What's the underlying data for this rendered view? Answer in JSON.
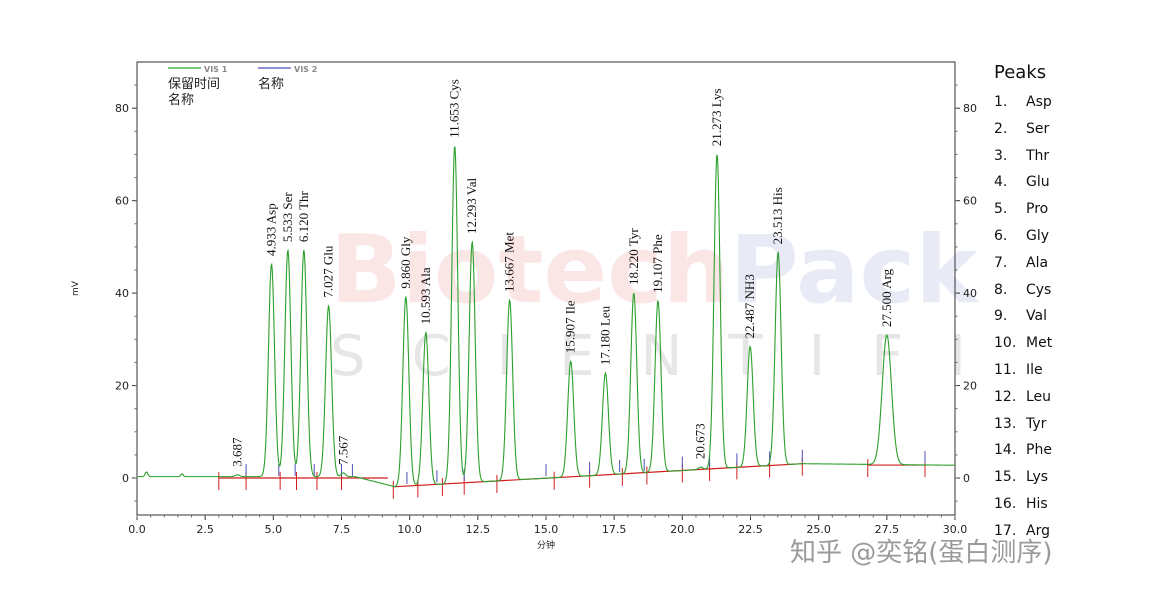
{
  "chart_data": {
    "type": "line",
    "xlabel": "分钟",
    "ylabel": "mV",
    "xlim": [
      0,
      30
    ],
    "ylim": [
      -8,
      90
    ],
    "x_ticks": [
      "0.0",
      "2.5",
      "5.0",
      "7.5",
      "10.0",
      "12.5",
      "15.0",
      "17.5",
      "20.0",
      "22.5",
      "25.0",
      "27.5",
      "30.0"
    ],
    "y_ticks": [
      0,
      20,
      40,
      60,
      80
    ],
    "grid": false,
    "legend": {
      "placement": "top-left",
      "series": [
        {
          "tag": "VIS 1",
          "color": "#2ca02c",
          "line1": "保留时间",
          "line2": "名称"
        },
        {
          "tag": "VIS 2",
          "color": "#4f4fb8",
          "line1": "名称"
        }
      ]
    },
    "series": [
      {
        "name": "VIS 1",
        "color": "#2ca02c"
      }
    ],
    "peaks": [
      {
        "rt": 3.687,
        "height": 0.4,
        "label": "3.687",
        "name": ""
      },
      {
        "rt": 4.933,
        "height": 46,
        "label": "4.933",
        "name": "Asp"
      },
      {
        "rt": 5.533,
        "height": 49,
        "label": "5.533",
        "name": "Ser"
      },
      {
        "rt": 6.12,
        "height": 49,
        "label": "6.120",
        "name": "Thr"
      },
      {
        "rt": 7.027,
        "height": 37,
        "label": "7.027",
        "name": "Glu"
      },
      {
        "rt": 7.567,
        "height": 0.8,
        "label": "7.567",
        "name": ""
      },
      {
        "rt": 9.86,
        "height": 41,
        "label": "9.860",
        "name": "Gly"
      },
      {
        "rt": 10.593,
        "height": 33,
        "label": "10.593",
        "name": "Ala"
      },
      {
        "rt": 11.653,
        "height": 73,
        "label": "11.653",
        "name": "Cys"
      },
      {
        "rt": 12.293,
        "height": 52,
        "label": "12.293",
        "name": "Val"
      },
      {
        "rt": 13.667,
        "height": 39,
        "label": "13.667",
        "name": "Met"
      },
      {
        "rt": 15.907,
        "height": 25,
        "label": "15.907",
        "name": "Ile"
      },
      {
        "rt": 17.18,
        "height": 22,
        "label": "17.180",
        "name": "Leu"
      },
      {
        "rt": 18.22,
        "height": 39,
        "label": "18.220",
        "name": "Tyr"
      },
      {
        "rt": 19.107,
        "height": 37,
        "label": "19.107",
        "name": "Phe"
      },
      {
        "rt": 20.673,
        "height": 0.5,
        "label": "20.673",
        "name": ""
      },
      {
        "rt": 21.273,
        "height": 68,
        "label": "21.273",
        "name": "Lys"
      },
      {
        "rt": 22.487,
        "height": 26,
        "label": "22.487",
        "name": "NH3"
      },
      {
        "rt": 23.513,
        "height": 46,
        "label": "23.513",
        "name": "His"
      },
      {
        "rt": 27.5,
        "height": 28,
        "label": "27.500",
        "name": "Arg"
      }
    ]
  },
  "watermark": {
    "main_left": "Biotech",
    "main_right": "Pack",
    "sub": "SCIENTIFIC",
    "left_color": "#e23a3a",
    "right_color": "#4a5fae"
  },
  "peak_list": {
    "title": "Peaks",
    "items": [
      {
        "num": "1.",
        "name": "Asp"
      },
      {
        "num": "2.",
        "name": "Ser"
      },
      {
        "num": "3.",
        "name": "Thr"
      },
      {
        "num": "4.",
        "name": "Glu"
      },
      {
        "num": "5.",
        "name": "Pro"
      },
      {
        "num": "6.",
        "name": "Gly"
      },
      {
        "num": "7.",
        "name": "Ala"
      },
      {
        "num": "8.",
        "name": "Cys"
      },
      {
        "num": "9.",
        "name": "Val"
      },
      {
        "num": "10.",
        "name": "Met"
      },
      {
        "num": "11.",
        "name": "Ile"
      },
      {
        "num": "12.",
        "name": "Leu"
      },
      {
        "num": "13.",
        "name": "Tyr"
      },
      {
        "num": "14.",
        "name": "Phe"
      },
      {
        "num": "15.",
        "name": "Lys"
      },
      {
        "num": "16.",
        "name": "His"
      },
      {
        "num": "17.",
        "name": "Arg"
      }
    ]
  },
  "footer": {
    "text": "知乎 @奕铭(蛋白测序)"
  }
}
